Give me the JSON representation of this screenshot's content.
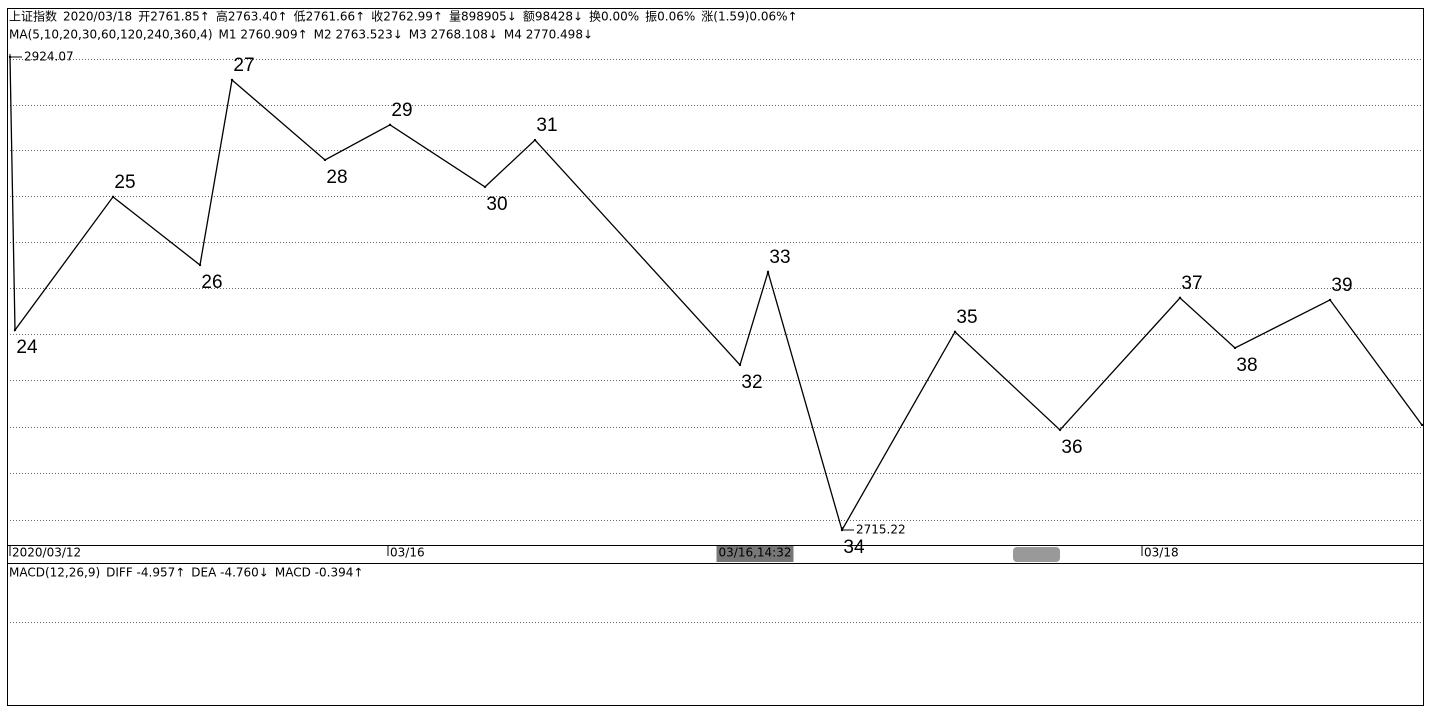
{
  "header": {
    "quote": [
      "上证指数",
      "2020/03/18",
      "开2761.85↑",
      "高2763.40↑",
      "低2761.66↑",
      "收2762.99↑",
      "量898905↓",
      "额98428↓",
      "换0.00%",
      "振0.06%",
      "涨(1.59)0.06%↑"
    ],
    "ma": [
      "MA(5,10,20,30,60,120,240,360,4)",
      "M1 2760.909↑",
      "M2 2763.523↓",
      "M3 2768.108↓",
      "M4 2770.498↓"
    ],
    "macd": [
      "MACD(12,26,9)",
      "DIFF -4.957↑",
      "DEA -4.760↓",
      "MACD -0.394↑"
    ]
  },
  "chart_data": {
    "type": "line",
    "color": "#000000",
    "x": [
      0,
      5,
      103,
      190,
      222,
      315,
      380,
      475,
      525,
      730,
      758,
      832,
      945,
      1050,
      1170,
      1225,
      1320,
      1412
    ],
    "values": [
      2924.07,
      2803.5,
      2862.3,
      2832.2,
      2913.9,
      2878.6,
      2894.1,
      2866.7,
      2887.4,
      2788.1,
      2829.1,
      2715.22,
      2802.7,
      2759.4,
      2817.7,
      2795.6,
      2816.8,
      2761.6
    ],
    "point_labels": [
      null,
      24,
      25,
      26,
      27,
      28,
      29,
      30,
      31,
      32,
      33,
      34,
      35,
      36,
      37,
      38,
      39,
      null
    ],
    "xlim": [
      0,
      1413
    ],
    "ylim": [
      2708.6,
      2944.8
    ],
    "xticks": [
      {
        "value": 0,
        "label": "2020/03/12"
      },
      {
        "value": 378,
        "label": "03/16"
      },
      {
        "value": 1132,
        "label": "03/18"
      }
    ],
    "cursor": {
      "value": 745,
      "label": "03/16,14:32"
    }
  }
}
